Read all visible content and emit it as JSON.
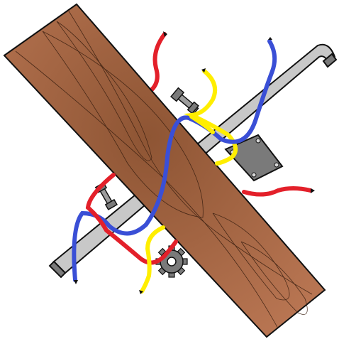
{
  "puzzle": {
    "colors": {
      "background": "#ffffff",
      "plank_light": "#b87552",
      "plank_dark": "#8e5534",
      "pipe": "#c8c8c8",
      "metal_dark": "#7a7a7a",
      "wire_red": "#e3202a",
      "wire_yellow": "#ffee00",
      "wire_blue": "#3a4fd6",
      "outline": "#111111"
    },
    "icons": [
      "wood-plank-icon",
      "pipe-icon",
      "bolt-icon",
      "gear-icon",
      "metal-plate-icon",
      "wire-icon"
    ]
  }
}
